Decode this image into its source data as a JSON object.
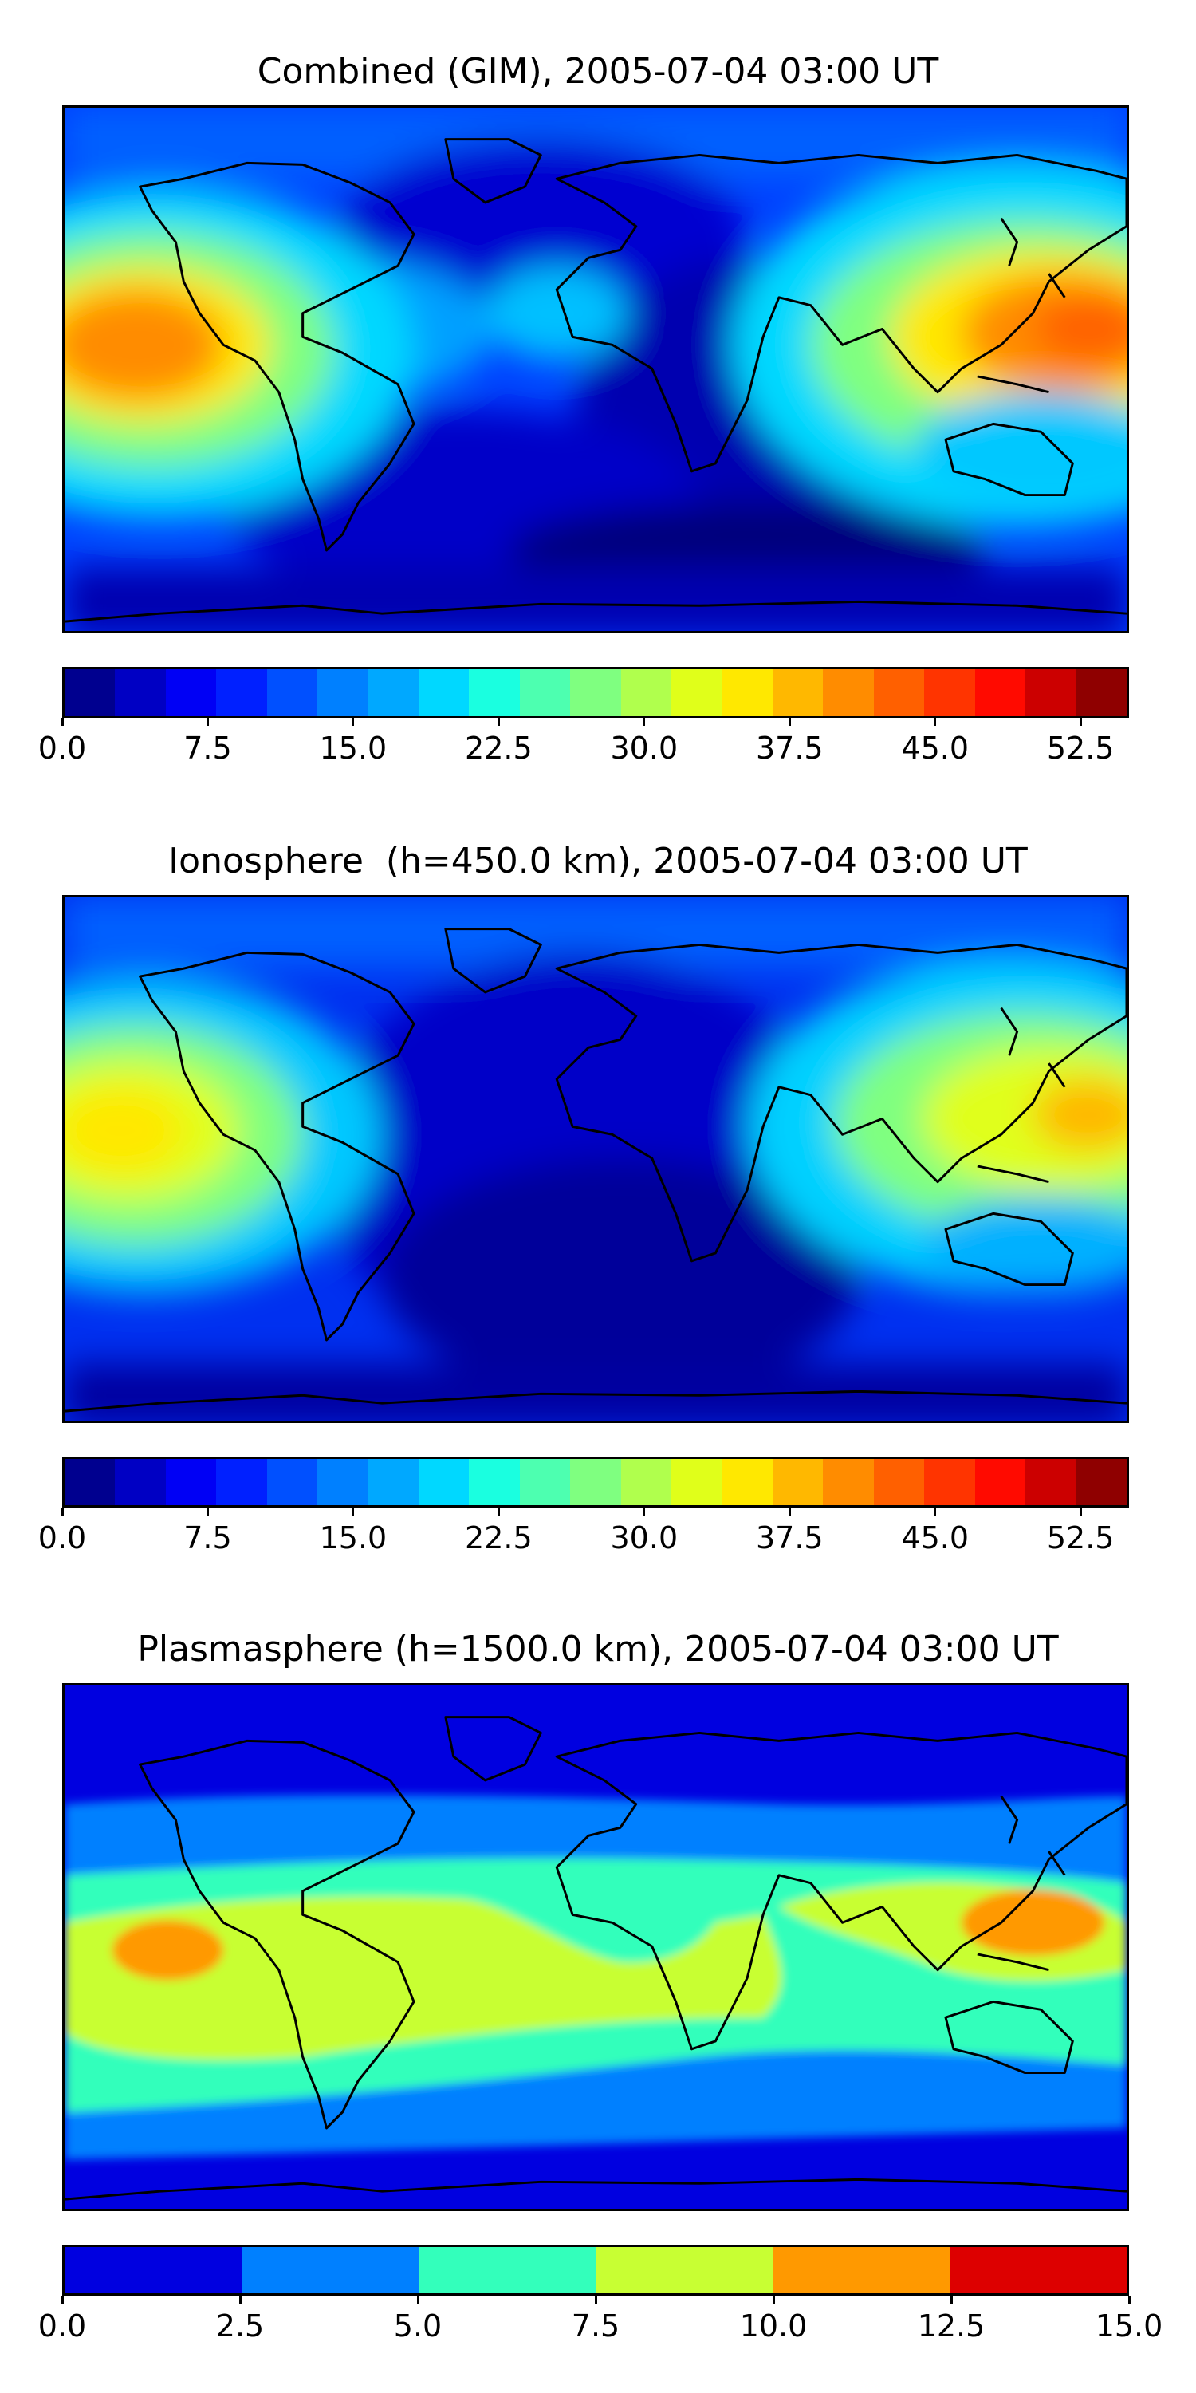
{
  "panels": [
    {
      "title": "Combined (GIM), 2005-07-04 03:00 UT",
      "colorbar": {
        "min": 0.0,
        "max": 55.0,
        "tick_labels": [
          "0.0",
          "7.5",
          "15.0",
          "22.5",
          "30.0",
          "37.5",
          "45.0",
          "52.5"
        ],
        "tick_values": [
          0.0,
          7.5,
          15.0,
          22.5,
          30.0,
          37.5,
          45.0,
          52.5
        ],
        "colors": [
          "#00008f",
          "#0000c4",
          "#0000f5",
          "#0020ff",
          "#0050ff",
          "#0080ff",
          "#00a8ff",
          "#00d8ff",
          "#1affe0",
          "#4dffb0",
          "#7fff80",
          "#b0ff4d",
          "#e0ff1a",
          "#ffe800",
          "#ffb800",
          "#ff8c00",
          "#ff6000",
          "#ff3400",
          "#ff0a00",
          "#cc0000",
          "#8f0000"
        ]
      }
    },
    {
      "title": "Ionosphere  (h=450.0 km), 2005-07-04 03:00 UT",
      "colorbar": {
        "min": 0.0,
        "max": 55.0,
        "tick_labels": [
          "0.0",
          "7.5",
          "15.0",
          "22.5",
          "30.0",
          "37.5",
          "45.0",
          "52.5"
        ],
        "tick_values": [
          0.0,
          7.5,
          15.0,
          22.5,
          30.0,
          37.5,
          45.0,
          52.5
        ],
        "colors": [
          "#00008f",
          "#0000c4",
          "#0000f5",
          "#0020ff",
          "#0050ff",
          "#0080ff",
          "#00a8ff",
          "#00d8ff",
          "#1affe0",
          "#4dffb0",
          "#7fff80",
          "#b0ff4d",
          "#e0ff1a",
          "#ffe800",
          "#ffb800",
          "#ff8c00",
          "#ff6000",
          "#ff3400",
          "#ff0a00",
          "#cc0000",
          "#8f0000"
        ]
      }
    },
    {
      "title": "Plasmasphere (h=1500.0 km), 2005-07-04 03:00 UT",
      "colorbar": {
        "min": 0.0,
        "max": 15.0,
        "tick_labels": [
          "0.0",
          "2.5",
          "5.0",
          "7.5",
          "10.0",
          "12.5",
          "15.0"
        ],
        "tick_values": [
          0.0,
          2.5,
          5.0,
          7.5,
          10.0,
          12.5,
          15.0
        ],
        "colors": [
          "#0000e0",
          "#0080ff",
          "#33ffbb",
          "#c8ff33",
          "#ff9900",
          "#dd0000"
        ]
      }
    }
  ]
}
